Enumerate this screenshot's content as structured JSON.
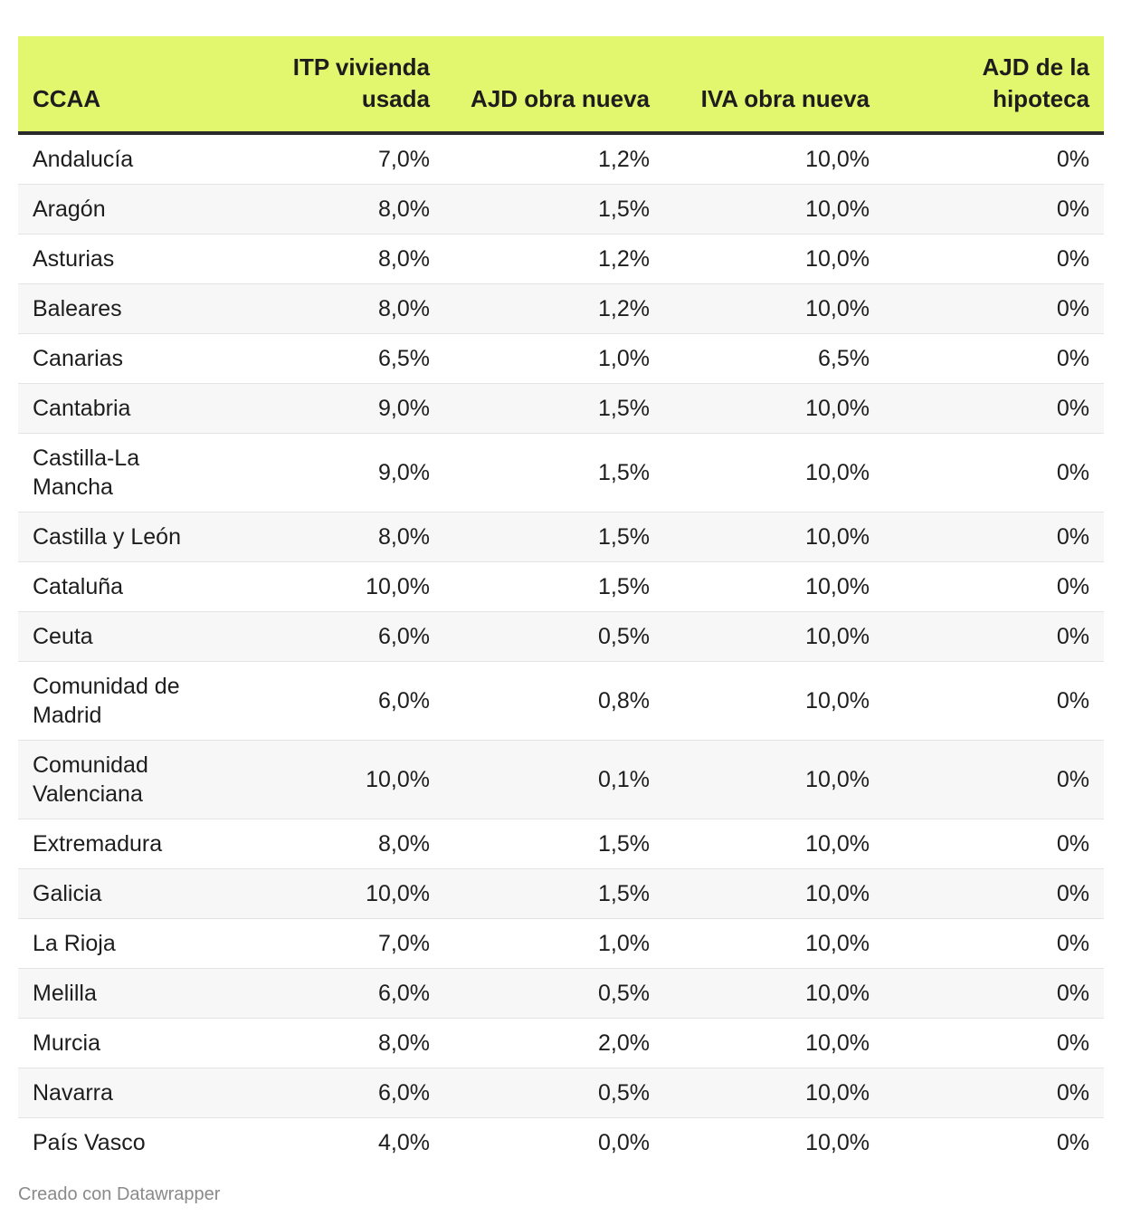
{
  "colors": {
    "header_bg": "#e2f76e",
    "stripe": "#f7f7f7",
    "text": "#1d1d1d",
    "footer": "#8a8a8a"
  },
  "table": {
    "headers": [
      "CCAA",
      "ITP vivienda usada",
      "AJD obra nueva",
      "IVA obra nueva",
      "AJD de la hipoteca"
    ],
    "rows": [
      [
        "Andalucía",
        "7,0%",
        "1,2%",
        "10,0%",
        "0%"
      ],
      [
        "Aragón",
        "8,0%",
        "1,5%",
        "10,0%",
        "0%"
      ],
      [
        "Asturias",
        "8,0%",
        "1,2%",
        "10,0%",
        "0%"
      ],
      [
        "Baleares",
        "8,0%",
        "1,2%",
        "10,0%",
        "0%"
      ],
      [
        "Canarias",
        "6,5%",
        "1,0%",
        "6,5%",
        "0%"
      ],
      [
        "Cantabria",
        "9,0%",
        "1,5%",
        "10,0%",
        "0%"
      ],
      [
        "Castilla-La Mancha",
        "9,0%",
        "1,5%",
        "10,0%",
        "0%"
      ],
      [
        "Castilla y León",
        "8,0%",
        "1,5%",
        "10,0%",
        "0%"
      ],
      [
        "Cataluña",
        "10,0%",
        "1,5%",
        "10,0%",
        "0%"
      ],
      [
        "Ceuta",
        "6,0%",
        "0,5%",
        "10,0%",
        "0%"
      ],
      [
        "Comunidad de Madrid",
        "6,0%",
        "0,8%",
        "10,0%",
        "0%"
      ],
      [
        "Comunidad Valenciana",
        "10,0%",
        "0,1%",
        "10,0%",
        "0%"
      ],
      [
        "Extremadura",
        "8,0%",
        "1,5%",
        "10,0%",
        "0%"
      ],
      [
        "Galicia",
        "10,0%",
        "1,5%",
        "10,0%",
        "0%"
      ],
      [
        "La Rioja",
        "7,0%",
        "1,0%",
        "10,0%",
        "0%"
      ],
      [
        "Melilla",
        "6,0%",
        "0,5%",
        "10,0%",
        "0%"
      ],
      [
        "Murcia",
        "8,0%",
        "2,0%",
        "10,0%",
        "0%"
      ],
      [
        "Navarra",
        "6,0%",
        "0,5%",
        "10,0%",
        "0%"
      ],
      [
        "País Vasco",
        "4,0%",
        "0,0%",
        "10,0%",
        "0%"
      ]
    ]
  },
  "footer": {
    "credit": "Creado con Datawrapper"
  }
}
